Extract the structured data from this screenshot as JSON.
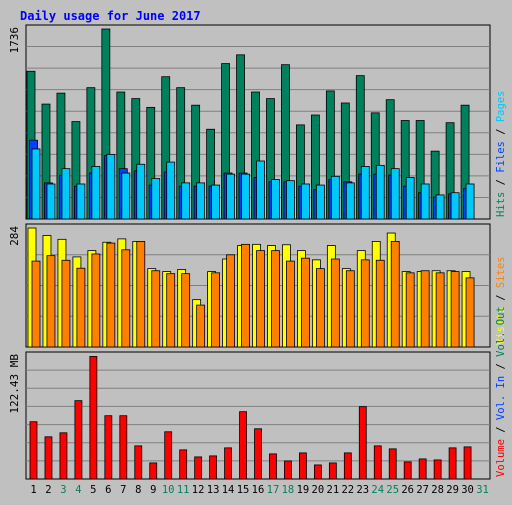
{
  "colors": {
    "background": "#c0c0c0",
    "panel": "#c0c0c0",
    "grid": "#808080",
    "title": "#0000ff",
    "hits": "#00805c",
    "files": "#0040ff",
    "pages": "#00c8f8",
    "visits": "#ffff00",
    "sites": "#ff8000",
    "volume": "#ff0000",
    "weekend_label": "#00805c",
    "weekday_label": "#000000"
  },
  "chart_data": {
    "type": "bar",
    "title": "Daily usage for June 2017",
    "categories": [
      "1",
      "2",
      "3",
      "4",
      "5",
      "6",
      "7",
      "8",
      "9",
      "10",
      "11",
      "12",
      "13",
      "14",
      "15",
      "16",
      "17",
      "18",
      "19",
      "20",
      "21",
      "22",
      "23",
      "24",
      "25",
      "26",
      "27",
      "28",
      "29",
      "30",
      "31"
    ],
    "weekend_days": [
      "3",
      "4",
      "10",
      "11",
      "17",
      "18",
      "24",
      "25",
      "31"
    ],
    "panels": [
      {
        "id": "hits-panel",
        "scale_label": "1736",
        "ylim": [
          0,
          1736
        ],
        "legend": [
          {
            "text": "Hits",
            "color_key": "hits"
          },
          {
            "text": " / ",
            "color_key": "legend_sep"
          },
          {
            "text": "Files",
            "color_key": "files"
          },
          {
            "text": " / ",
            "color_key": "legend_sep"
          },
          {
            "text": "Pages",
            "color_key": "pages"
          }
        ],
        "series": [
          {
            "name": "Hits",
            "color_key": "hits",
            "values": [
              1350,
              1050,
              1150,
              890,
              1200,
              1736,
              1160,
              1100,
              1020,
              1300,
              1200,
              1040,
              820,
              1420,
              1500,
              1160,
              1100,
              1410,
              860,
              950,
              1170,
              1060,
              1310,
              970,
              1090,
              900,
              900,
              620,
              880,
              1040,
              0
            ]
          },
          {
            "name": "Files",
            "color_key": "files",
            "values": [
              720,
              330,
              400,
              300,
              420,
              580,
              460,
              440,
              310,
              430,
              300,
              300,
              300,
              420,
              420,
              380,
              340,
              340,
              300,
              270,
              360,
              340,
              410,
              410,
              400,
              300,
              240,
              200,
              230,
              280,
              0
            ]
          },
          {
            "name": "Pages",
            "color_key": "pages",
            "values": [
              640,
              320,
              460,
              320,
              480,
              590,
              420,
              500,
              370,
              520,
              330,
              330,
              310,
              410,
              410,
              530,
              360,
              350,
              320,
              310,
              390,
              330,
              480,
              490,
              460,
              380,
              320,
              220,
              240,
              320,
              0
            ]
          }
        ]
      },
      {
        "id": "visits-panel",
        "scale_label": "284",
        "ylim": [
          0,
          284
        ],
        "legend": [
          {
            "text": "Visits",
            "color_key": "visits"
          },
          {
            "text": " / ",
            "color_key": "legend_sep"
          },
          {
            "text": "Sites",
            "color_key": "sites"
          }
        ],
        "series": [
          {
            "name": "Visits",
            "color_key": "visits",
            "values": [
              284,
              266,
              257,
              215,
              230,
              250,
              258,
              252,
              187,
              180,
              185,
              113,
              180,
              210,
              242,
              245,
              242,
              244,
              230,
              208,
              242,
              187,
              230,
              252,
              272,
              180,
              180,
              182,
              182,
              180,
              0
            ]
          },
          {
            "name": "Sites",
            "color_key": "sites",
            "values": [
              205,
              218,
              207,
              188,
              222,
              248,
              232,
              252,
              182,
              175,
              175,
              100,
              177,
              220,
              245,
              230,
              230,
              205,
              212,
              187,
              210,
              182,
              208,
              207,
              252,
              177,
              182,
              177,
              180,
              165,
              0
            ]
          }
        ]
      },
      {
        "id": "volume-panel",
        "scale_label": "122.43 MB",
        "ylim": [
          0,
          122.43
        ],
        "legend": [
          {
            "text": "Volume",
            "color_key": "volume"
          },
          {
            "text": " / ",
            "color_key": "legend_sep"
          },
          {
            "text": "Vol. In",
            "color_key": "files"
          },
          {
            "text": " / ",
            "color_key": "legend_sep"
          },
          {
            "text": "Vol. Out",
            "color_key": "hits"
          }
        ],
        "series": [
          {
            "name": "Volume",
            "color_key": "volume",
            "values": [
              57,
              42,
              46,
              78,
              122,
              63,
              63,
              33,
              16,
              47,
              29,
              22,
              23,
              31,
              67,
              50,
              25,
              18,
              26,
              14,
              16,
              26,
              72,
              33,
              30,
              17,
              20,
              19,
              31,
              32,
              0
            ]
          }
        ]
      }
    ]
  }
}
